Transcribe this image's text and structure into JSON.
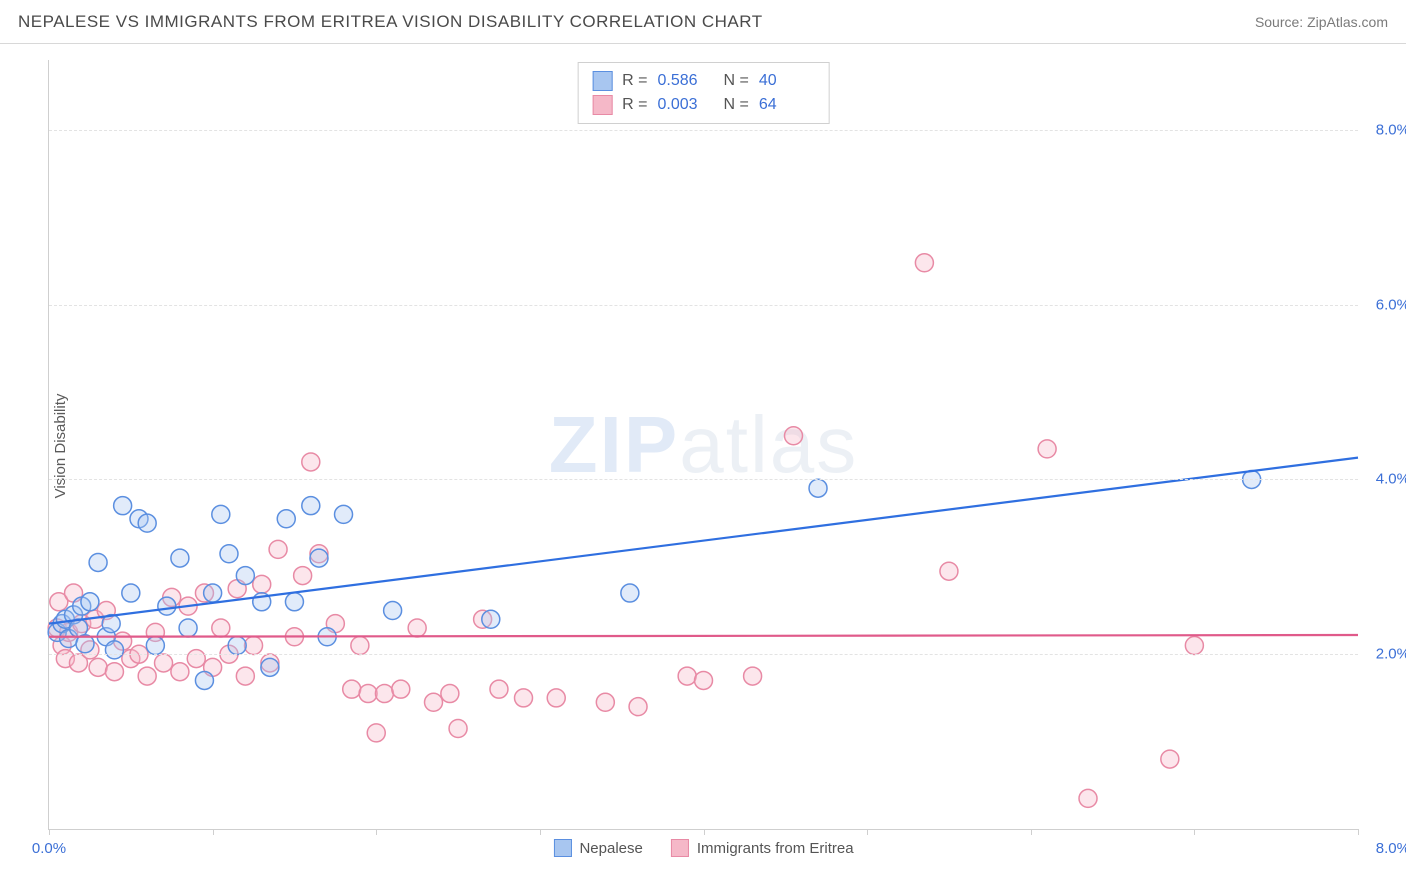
{
  "header": {
    "title": "NEPALESE VS IMMIGRANTS FROM ERITREA VISION DISABILITY CORRELATION CHART",
    "source": "Source: ZipAtlas.com"
  },
  "ylabel": "Vision Disability",
  "watermark": {
    "left": "ZIP",
    "right": "atlas"
  },
  "chart": {
    "type": "scatter",
    "xlim": [
      0,
      8
    ],
    "ylim": [
      0,
      8.8
    ],
    "x_unit": "%",
    "y_unit": "%",
    "xtick_positions": [
      0,
      1,
      2,
      3,
      4,
      5,
      6,
      7,
      8
    ],
    "xtick_labels": {
      "0": "0.0%",
      "8": "8.0%"
    },
    "ytick_positions": [
      2,
      4,
      6,
      8
    ],
    "ytick_labels": [
      "2.0%",
      "4.0%",
      "6.0%",
      "8.0%"
    ],
    "gridline_color": "#e3e3e3",
    "axis_color": "#cfcfcf",
    "tick_label_color": "#3b6fd6",
    "background_color": "#ffffff",
    "marker_radius": 9,
    "marker_stroke_width": 1.5,
    "fill_opacity": 0.35,
    "line_width": 2.2
  },
  "series": [
    {
      "name": "Nepalese",
      "color_fill": "#a8c6f0",
      "color_stroke": "#5b8fe0",
      "line_color": "#2f6fe0",
      "R": "0.586",
      "N": "40",
      "regression": {
        "x1": 0,
        "y1": 2.35,
        "x2": 8,
        "y2": 4.25
      },
      "points": [
        [
          0.05,
          2.25
        ],
        [
          0.08,
          2.35
        ],
        [
          0.1,
          2.4
        ],
        [
          0.12,
          2.18
        ],
        [
          0.15,
          2.45
        ],
        [
          0.18,
          2.3
        ],
        [
          0.2,
          2.55
        ],
        [
          0.22,
          2.12
        ],
        [
          0.25,
          2.6
        ],
        [
          0.3,
          3.05
        ],
        [
          0.35,
          2.2
        ],
        [
          0.38,
          2.35
        ],
        [
          0.45,
          3.7
        ],
        [
          0.5,
          2.7
        ],
        [
          0.55,
          3.55
        ],
        [
          0.6,
          3.5
        ],
        [
          0.65,
          2.1
        ],
        [
          0.72,
          2.55
        ],
        [
          0.8,
          3.1
        ],
        [
          0.85,
          2.3
        ],
        [
          0.95,
          1.7
        ],
        [
          1.0,
          2.7
        ],
        [
          1.05,
          3.6
        ],
        [
          1.1,
          3.15
        ],
        [
          1.15,
          2.1
        ],
        [
          1.2,
          2.9
        ],
        [
          1.3,
          2.6
        ],
        [
          1.35,
          1.85
        ],
        [
          1.45,
          3.55
        ],
        [
          1.5,
          2.6
        ],
        [
          1.6,
          3.7
        ],
        [
          1.65,
          3.1
        ],
        [
          1.7,
          2.2
        ],
        [
          1.8,
          3.6
        ],
        [
          2.1,
          2.5
        ],
        [
          2.7,
          2.4
        ],
        [
          3.55,
          2.7
        ],
        [
          4.7,
          3.9
        ],
        [
          7.35,
          4.0
        ],
        [
          0.4,
          2.05
        ]
      ]
    },
    {
      "name": "Immigrants from Eritrea",
      "color_fill": "#f5b8c8",
      "color_stroke": "#e88aa5",
      "line_color": "#e05a8a",
      "R": "0.003",
      "N": "64",
      "regression": {
        "x1": 0,
        "y1": 2.2,
        "x2": 8,
        "y2": 2.22
      },
      "points": [
        [
          0.05,
          2.3
        ],
        [
          0.06,
          2.6
        ],
        [
          0.08,
          2.1
        ],
        [
          0.1,
          1.95
        ],
        [
          0.12,
          2.25
        ],
        [
          0.15,
          2.7
        ],
        [
          0.18,
          1.9
        ],
        [
          0.2,
          2.35
        ],
        [
          0.25,
          2.05
        ],
        [
          0.28,
          2.4
        ],
        [
          0.3,
          1.85
        ],
        [
          0.35,
          2.5
        ],
        [
          0.4,
          1.8
        ],
        [
          0.45,
          2.15
        ],
        [
          0.5,
          1.95
        ],
        [
          0.55,
          2.0
        ],
        [
          0.6,
          1.75
        ],
        [
          0.65,
          2.25
        ],
        [
          0.7,
          1.9
        ],
        [
          0.75,
          2.65
        ],
        [
          0.8,
          1.8
        ],
        [
          0.85,
          2.55
        ],
        [
          0.9,
          1.95
        ],
        [
          0.95,
          2.7
        ],
        [
          1.0,
          1.85
        ],
        [
          1.05,
          2.3
        ],
        [
          1.1,
          2.0
        ],
        [
          1.15,
          2.75
        ],
        [
          1.2,
          1.75
        ],
        [
          1.25,
          2.1
        ],
        [
          1.3,
          2.8
        ],
        [
          1.35,
          1.9
        ],
        [
          1.4,
          3.2
        ],
        [
          1.5,
          2.2
        ],
        [
          1.55,
          2.9
        ],
        [
          1.6,
          4.2
        ],
        [
          1.65,
          3.15
        ],
        [
          1.75,
          2.35
        ],
        [
          1.85,
          1.6
        ],
        [
          1.9,
          2.1
        ],
        [
          1.95,
          1.55
        ],
        [
          2.0,
          1.1
        ],
        [
          2.05,
          1.55
        ],
        [
          2.15,
          1.6
        ],
        [
          2.25,
          2.3
        ],
        [
          2.35,
          1.45
        ],
        [
          2.45,
          1.55
        ],
        [
          2.5,
          1.15
        ],
        [
          2.65,
          2.4
        ],
        [
          2.75,
          1.6
        ],
        [
          2.9,
          1.5
        ],
        [
          3.1,
          1.5
        ],
        [
          3.4,
          1.45
        ],
        [
          3.6,
          1.4
        ],
        [
          3.9,
          1.75
        ],
        [
          4.0,
          1.7
        ],
        [
          4.3,
          1.75
        ],
        [
          4.55,
          4.5
        ],
        [
          5.35,
          6.48
        ],
        [
          5.5,
          2.95
        ],
        [
          6.1,
          4.35
        ],
        [
          6.35,
          0.35
        ],
        [
          6.85,
          0.8
        ],
        [
          7.0,
          2.1
        ]
      ]
    }
  ],
  "legend_bottom": [
    {
      "label": "Nepalese",
      "fill": "#a8c6f0",
      "stroke": "#5b8fe0"
    },
    {
      "label": "Immigrants from Eritrea",
      "fill": "#f5b8c8",
      "stroke": "#e88aa5"
    }
  ]
}
